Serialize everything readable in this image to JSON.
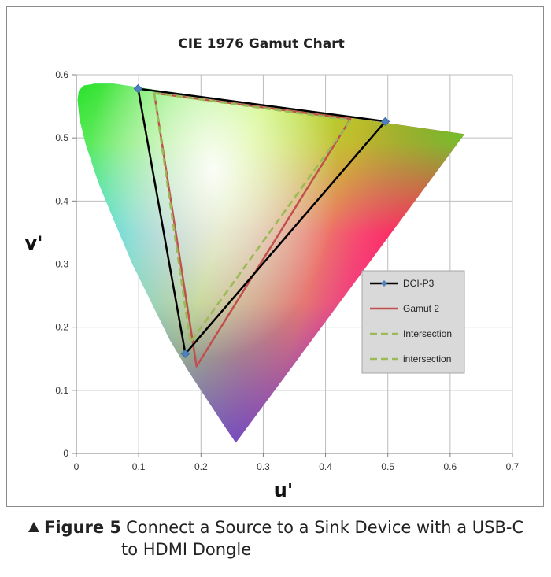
{
  "caption": {
    "label": "Figure 5",
    "text_line1": "Connect a Source to a Sink Device with a USB-C",
    "text_line2": "to HDMI Dongle"
  },
  "chart_data": {
    "type": "scatter",
    "title": "CIE 1976 Gamut Chart",
    "xlabel": "u'",
    "ylabel": "v'",
    "xlim": [
      0,
      0.7
    ],
    "ylim": [
      0,
      0.6
    ],
    "xticks": [
      0,
      0.1,
      0.2,
      0.3,
      0.4,
      0.5,
      0.6,
      0.7
    ],
    "yticks": [
      0,
      0.1,
      0.2,
      0.3,
      0.4,
      0.5,
      0.6
    ],
    "xtick_labels": [
      "0",
      "0.1",
      "0.2",
      "0.3",
      "0.4",
      "0.5",
      "0.6",
      "0.7"
    ],
    "ytick_labels": [
      "0",
      "0.1",
      "0.2",
      "0.3",
      "0.4",
      "0.5",
      "0.6"
    ],
    "grid": true,
    "legend_position": "right",
    "spectral_locus": {
      "u": [
        0.256,
        0.24,
        0.22,
        0.2,
        0.18,
        0.15,
        0.12,
        0.09,
        0.06,
        0.035,
        0.015,
        0.005,
        0.002,
        0.004,
        0.012,
        0.03,
        0.06,
        0.1,
        0.623
      ],
      "v": [
        0.017,
        0.04,
        0.07,
        0.1,
        0.13,
        0.18,
        0.24,
        0.3,
        0.37,
        0.43,
        0.49,
        0.53,
        0.56,
        0.575,
        0.583,
        0.586,
        0.586,
        0.58,
        0.506
      ]
    },
    "series": [
      {
        "name": "DCI-P3",
        "color": "#000000",
        "dash": false,
        "markers": true,
        "u": [
          0.099,
          0.496,
          0.175,
          0.099
        ],
        "v": [
          0.578,
          0.526,
          0.158,
          0.578
        ]
      },
      {
        "name": "Gamut 2",
        "color": "#c0504d",
        "dash": false,
        "markers": false,
        "u": [
          0.125,
          0.44,
          0.193,
          0.125
        ],
        "v": [
          0.571,
          0.53,
          0.138,
          0.571
        ]
      },
      {
        "name": "Intersection",
        "color": "#9bbb59",
        "dash": true,
        "markers": false,
        "u": [
          0.125,
          0.44,
          0.183,
          0.125
        ],
        "v": [
          0.571,
          0.528,
          0.176,
          0.571
        ]
      },
      {
        "name": "intersection",
        "color": "#9bbb59",
        "dash": true,
        "markers": false,
        "u": [
          0.125,
          0.44,
          0.183,
          0.125
        ],
        "v": [
          0.571,
          0.528,
          0.176,
          0.571
        ]
      }
    ]
  }
}
